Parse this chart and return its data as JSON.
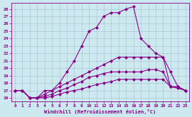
{
  "background_color": "#cde9f0",
  "grid_color": "#aabbcc",
  "line_color": "#880088",
  "marker": "D",
  "marker_size": 2,
  "line_width": 0.8,
  "xlim": [
    -0.5,
    23.5
  ],
  "ylim": [
    15.5,
    28.8
  ],
  "yticks": [
    16,
    17,
    18,
    19,
    20,
    21,
    22,
    23,
    24,
    25,
    26,
    27,
    28
  ],
  "xticks": [
    0,
    1,
    2,
    3,
    4,
    5,
    6,
    7,
    8,
    9,
    10,
    11,
    12,
    13,
    14,
    15,
    16,
    17,
    18,
    19,
    20,
    21,
    22,
    23
  ],
  "xlabel": "Windchill (Refroidissement éolien,°C)",
  "curves": {
    "curve1": [
      17.0,
      17.0,
      16.0,
      16.0,
      17.0,
      17.0,
      18.0,
      19.5,
      21.0,
      23.0,
      25.0,
      25.5,
      27.0,
      27.5,
      27.5,
      28.0,
      28.3,
      24.0,
      23.0,
      22.0,
      21.5,
      19.5,
      17.5,
      17.0
    ],
    "curve2": [
      17.0,
      17.0,
      16.0,
      16.0,
      16.5,
      17.0,
      17.5,
      18.0,
      18.5,
      19.0,
      19.5,
      20.0,
      20.5,
      21.0,
      21.5,
      21.5,
      21.5,
      21.5,
      21.5,
      21.5,
      21.5,
      17.5,
      17.5,
      17.0
    ],
    "curve3": [
      17.0,
      17.0,
      16.0,
      16.0,
      16.2,
      16.5,
      17.0,
      17.3,
      17.8,
      18.2,
      18.8,
      19.0,
      19.3,
      19.5,
      19.5,
      19.5,
      19.5,
      19.5,
      19.8,
      19.8,
      19.5,
      17.5,
      17.5,
      17.0
    ],
    "curve4": [
      17.0,
      17.0,
      16.0,
      16.0,
      16.0,
      16.2,
      16.5,
      16.8,
      17.0,
      17.2,
      17.5,
      17.8,
      18.0,
      18.2,
      18.5,
      18.5,
      18.5,
      18.5,
      18.5,
      18.5,
      18.5,
      17.5,
      17.3,
      17.0
    ]
  }
}
